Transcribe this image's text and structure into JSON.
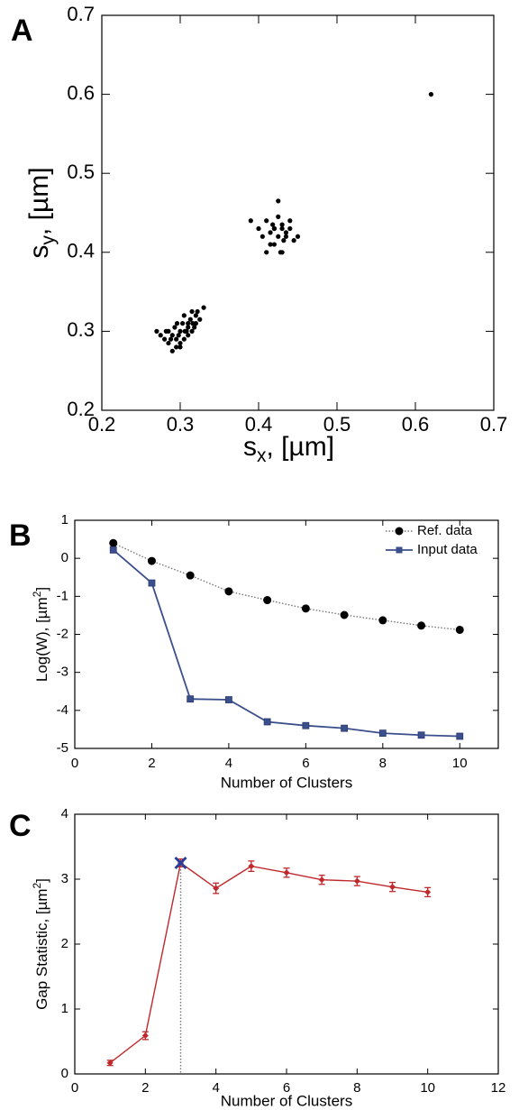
{
  "chart_data": [
    {
      "type": "scatter",
      "panel_label": "A",
      "xlabel": {
        "text": "s",
        "sub": "x",
        "rest": ", [µm]"
      },
      "ylabel": {
        "text": "s",
        "sub": "y",
        "rest": ", [µm]"
      },
      "xlim": [
        0.2,
        0.7
      ],
      "ylim": [
        0.2,
        0.7
      ],
      "xticks": [
        0.2,
        0.3,
        0.4,
        0.5,
        0.6,
        0.7
      ],
      "yticks": [
        0.2,
        0.3,
        0.4,
        0.5,
        0.6,
        0.7
      ],
      "series": [
        {
          "color": "#000000",
          "x": [
            0.28,
            0.285,
            0.29,
            0.295,
            0.3,
            0.305,
            0.31,
            0.315,
            0.32,
            0.325,
            0.275,
            0.282,
            0.288,
            0.293,
            0.298,
            0.303,
            0.308,
            0.313,
            0.318,
            0.322,
            0.29,
            0.3,
            0.31,
            0.32,
            0.285,
            0.295,
            0.305,
            0.315,
            0.27,
            0.33,
            0.3,
            0.31,
            0.296,
            0.306,
            0.316,
            0.4,
            0.405,
            0.41,
            0.415,
            0.42,
            0.425,
            0.43,
            0.435,
            0.44,
            0.445,
            0.41,
            0.42,
            0.43,
            0.44,
            0.415,
            0.425,
            0.435,
            0.42,
            0.43,
            0.45,
            0.39,
            0.425,
            0.418,
            0.432,
            0.428,
            0.62
          ],
          "values": [
            0.29,
            0.285,
            0.295,
            0.28,
            0.3,
            0.29,
            0.31,
            0.3,
            0.32,
            0.315,
            0.295,
            0.3,
            0.29,
            0.305,
            0.295,
            0.31,
            0.3,
            0.315,
            0.305,
            0.325,
            0.275,
            0.285,
            0.295,
            0.31,
            0.3,
            0.29,
            0.32,
            0.325,
            0.3,
            0.33,
            0.28,
            0.305,
            0.31,
            0.3,
            0.31,
            0.43,
            0.42,
            0.44,
            0.41,
            0.43,
            0.42,
            0.435,
            0.425,
            0.44,
            0.415,
            0.4,
            0.43,
            0.4,
            0.43,
            0.425,
            0.445,
            0.42,
            0.41,
            0.43,
            0.42,
            0.44,
            0.465,
            0.435,
            0.415,
            0.4,
            0.6
          ]
        }
      ]
    },
    {
      "type": "line",
      "panel_label": "B",
      "xlabel": "Number of Clusters",
      "ylabel": {
        "text": "Log(W), [µm",
        "sup": "2",
        "rest": "]"
      },
      "xlim": [
        0,
        11
      ],
      "ylim": [
        -5,
        1
      ],
      "xticks": [
        0,
        2,
        4,
        6,
        8,
        10
      ],
      "yticks": [
        -5,
        -4,
        -3,
        -2,
        -1,
        0,
        1
      ],
      "legend": "upper right",
      "x": [
        1,
        2,
        3,
        4,
        5,
        6,
        7,
        8,
        9,
        10
      ],
      "series": [
        {
          "name": "Ref. data",
          "color": "#000000",
          "values": [
            0.4,
            -0.07,
            -0.45,
            -0.87,
            -1.1,
            -1.32,
            -1.49,
            -1.63,
            -1.77,
            -1.88
          ]
        },
        {
          "name": "Input data",
          "color": "#3b4f8c",
          "values": [
            0.22,
            -0.65,
            -3.7,
            -3.72,
            -4.3,
            -4.4,
            -4.47,
            -4.6,
            -4.65,
            -4.68
          ]
        }
      ]
    },
    {
      "type": "errorbar",
      "panel_label": "C",
      "xlabel": "Number of Clusters",
      "ylabel": {
        "text": "Gap Statistic, [µm",
        "sup": "2",
        "rest": "]"
      },
      "xlim": [
        0,
        12
      ],
      "ylim": [
        0,
        4
      ],
      "xticks": [
        0,
        2,
        4,
        6,
        8,
        10,
        12
      ],
      "yticks": [
        0,
        1,
        2,
        3,
        4
      ],
      "x": [
        1,
        2,
        3,
        4,
        5,
        6,
        7,
        8,
        9,
        10
      ],
      "series": [
        {
          "color": "#c0282c",
          "values": [
            0.17,
            0.59,
            3.25,
            2.86,
            3.2,
            3.1,
            2.99,
            2.97,
            2.88,
            2.8
          ],
          "errors": [
            0.04,
            0.06,
            0.06,
            0.08,
            0.08,
            0.07,
            0.07,
            0.07,
            0.07,
            0.07
          ]
        }
      ],
      "optimal": {
        "x": 3,
        "y": 3.25,
        "color": "#2a3f9a"
      }
    }
  ]
}
